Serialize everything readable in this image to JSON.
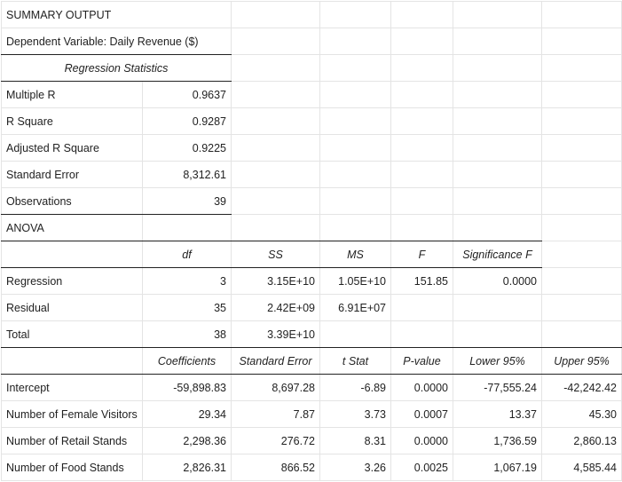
{
  "title": "SUMMARY OUTPUT",
  "dependent_variable": "Dependent Variable: Daily Revenue ($)",
  "regression_statistics": {
    "header": "Regression Statistics",
    "rows": [
      {
        "label": "Multiple R",
        "value": "0.9637"
      },
      {
        "label": "R Square",
        "value": "0.9287"
      },
      {
        "label": "Adjusted R Square",
        "value": "0.9225"
      },
      {
        "label": "Standard Error",
        "value": "8,312.61"
      },
      {
        "label": "Observations",
        "value": "39"
      }
    ]
  },
  "anova": {
    "label": "ANOVA",
    "headers": [
      "df",
      "SS",
      "MS",
      "F",
      "Significance F"
    ],
    "rows": [
      {
        "label": "Regression",
        "df": "3",
        "ss": "3.15E+10",
        "ms": "1.05E+10",
        "f": "151.85",
        "sig": "0.0000"
      },
      {
        "label": "Residual",
        "df": "35",
        "ss": "2.42E+09",
        "ms": "6.91E+07",
        "f": "",
        "sig": ""
      },
      {
        "label": "Total",
        "df": "38",
        "ss": "3.39E+10",
        "ms": "",
        "f": "",
        "sig": ""
      }
    ]
  },
  "coefficients": {
    "headers": [
      "Coefficients",
      "Standard Error",
      "t Stat",
      "P-value",
      "Lower 95%",
      "Upper 95%"
    ],
    "rows": [
      {
        "label": "Intercept",
        "coef": "-59,898.83",
        "se": "8,697.28",
        "t": "-6.89",
        "p": "0.0000",
        "lower": "-77,555.24",
        "upper": "-42,242.42"
      },
      {
        "label": "Number of Female Visitors",
        "coef": "29.34",
        "se": "7.87",
        "t": "3.73",
        "p": "0.0007",
        "lower": "13.37",
        "upper": "45.30"
      },
      {
        "label": "Number of Retail Stands",
        "coef": "2,298.36",
        "se": "276.72",
        "t": "8.31",
        "p": "0.0000",
        "lower": "1,736.59",
        "upper": "2,860.13"
      },
      {
        "label": "Number of Food Stands",
        "coef": "2,826.31",
        "se": "866.52",
        "t": "3.26",
        "p": "0.0025",
        "lower": "1,067.19",
        "upper": "4,585.44"
      }
    ]
  }
}
